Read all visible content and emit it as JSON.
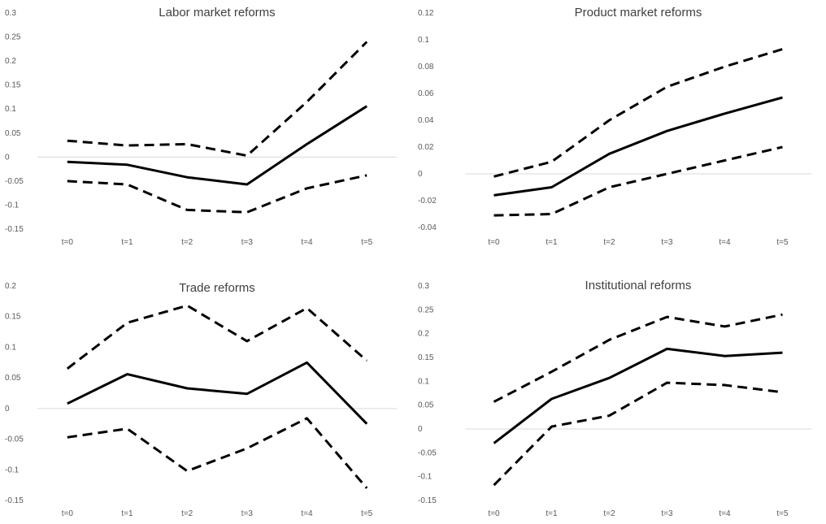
{
  "chart_data": [
    {
      "type": "line",
      "title": "Labor market reforms",
      "categories": [
        "t=0",
        "t=1",
        "t=2",
        "t=3",
        "t=4",
        "t=5"
      ],
      "ylim": [
        -0.15,
        0.3
      ],
      "yticks": [
        "0.3",
        "0.25",
        "0.2",
        "0.15",
        "0.1",
        "0.05",
        "0",
        "-0.05",
        "-0.1",
        "-0.15"
      ],
      "series": [
        {
          "style": "solid",
          "values": [
            -0.01,
            -0.016,
            -0.042,
            -0.057,
            0.027,
            0.106
          ]
        },
        {
          "style": "dashed",
          "values": [
            0.034,
            0.024,
            0.027,
            0.003,
            0.115,
            0.24
          ]
        },
        {
          "style": "dashed",
          "values": [
            -0.05,
            -0.057,
            -0.11,
            -0.115,
            -0.065,
            -0.038
          ]
        }
      ]
    },
    {
      "type": "line",
      "title": "Product market reforms",
      "categories": [
        "t=0",
        "t=1",
        "t=2",
        "t=3",
        "t=4",
        "t=5"
      ],
      "ylim": [
        -0.04,
        0.12
      ],
      "yticks": [
        "0.12",
        "0.1",
        "0.08",
        "0.06",
        "0.04",
        "0.02",
        "0",
        "-0.02",
        "-0.04"
      ],
      "series": [
        {
          "style": "solid",
          "values": [
            -0.016,
            -0.01,
            0.015,
            0.032,
            0.045,
            0.057
          ]
        },
        {
          "style": "dashed",
          "values": [
            -0.002,
            0.009,
            0.04,
            0.065,
            0.08,
            0.093
          ]
        },
        {
          "style": "dashed",
          "values": [
            -0.031,
            -0.03,
            -0.01,
            0.0,
            0.01,
            0.02
          ]
        }
      ]
    },
    {
      "type": "line",
      "title": "Trade reforms",
      "categories": [
        "t=0",
        "t=1",
        "t=2",
        "t=3",
        "t=4",
        "t=5"
      ],
      "ylim": [
        -0.15,
        0.2
      ],
      "yticks": [
        "0.2",
        "0.15",
        "0.1",
        "0.05",
        "0",
        "-0.05",
        "-0.1",
        "-0.15"
      ],
      "series": [
        {
          "style": "solid",
          "values": [
            0.008,
            0.056,
            0.033,
            0.024,
            0.075,
            -0.025
          ]
        },
        {
          "style": "dashed",
          "values": [
            0.065,
            0.14,
            0.168,
            0.11,
            0.164,
            0.078
          ]
        },
        {
          "style": "dashed",
          "values": [
            -0.047,
            -0.033,
            -0.102,
            -0.065,
            -0.016,
            -0.13
          ]
        }
      ]
    },
    {
      "type": "line",
      "title": "Institutional reforms",
      "categories": [
        "t=0",
        "t=1",
        "t=2",
        "t=3",
        "t=4",
        "t=5"
      ],
      "ylim": [
        -0.15,
        0.3
      ],
      "yticks": [
        "0.3",
        "0.25",
        "0.2",
        "0.15",
        "0.1",
        "0.05",
        "0",
        "-0.05",
        "-0.1",
        "-0.15"
      ],
      "series": [
        {
          "style": "solid",
          "values": [
            -0.03,
            0.063,
            0.107,
            0.168,
            0.153,
            0.16
          ]
        },
        {
          "style": "dashed",
          "values": [
            0.057,
            0.12,
            0.187,
            0.235,
            0.215,
            0.24
          ]
        },
        {
          "style": "dashed",
          "values": [
            -0.118,
            0.005,
            0.028,
            0.097,
            0.092,
            0.077
          ]
        }
      ]
    }
  ]
}
